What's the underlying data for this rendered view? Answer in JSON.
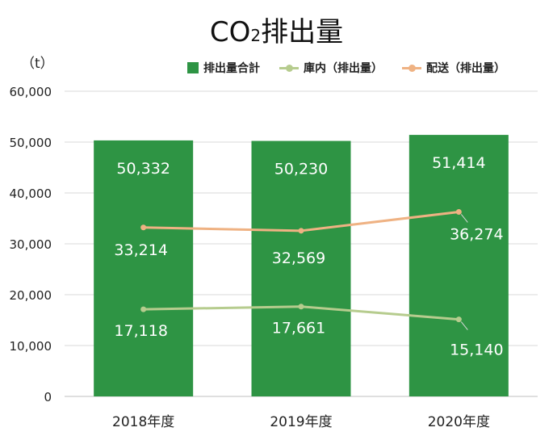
{
  "title": {
    "main": "CO",
    "subscript": "2",
    "rest": "排出量"
  },
  "unit_label": "（t）",
  "colors": {
    "total": "#2e9444",
    "warehouse": "#b6cc8e",
    "delivery": "#efb283",
    "grid": "#d9d9d9"
  },
  "chart_data": {
    "type": "bar",
    "categories": [
      "2018年度",
      "2019年度",
      "2020年度"
    ],
    "ylim": [
      0,
      60000
    ],
    "yticks": [
      "0",
      "10,000",
      "20,000",
      "30,000",
      "40,000",
      "50,000",
      "60,000"
    ],
    "ytick_values": [
      0,
      10000,
      20000,
      30000,
      40000,
      50000,
      60000
    ],
    "grid": true,
    "legend_position": "top-right",
    "series": [
      {
        "name": "排出量合計",
        "kind": "bar",
        "values": [
          50332,
          50230,
          51414
        ],
        "labels": [
          "50,332",
          "50,230",
          "51,414"
        ]
      },
      {
        "name": "庫内（排出量）",
        "kind": "line",
        "values": [
          17118,
          17661,
          15140
        ],
        "labels": [
          "17,118",
          "17,661",
          "15,140"
        ]
      },
      {
        "name": "配送（排出量）",
        "kind": "line",
        "values": [
          33214,
          32569,
          36274
        ],
        "labels": [
          "33,214",
          "32,569",
          "36,274"
        ]
      }
    ]
  }
}
